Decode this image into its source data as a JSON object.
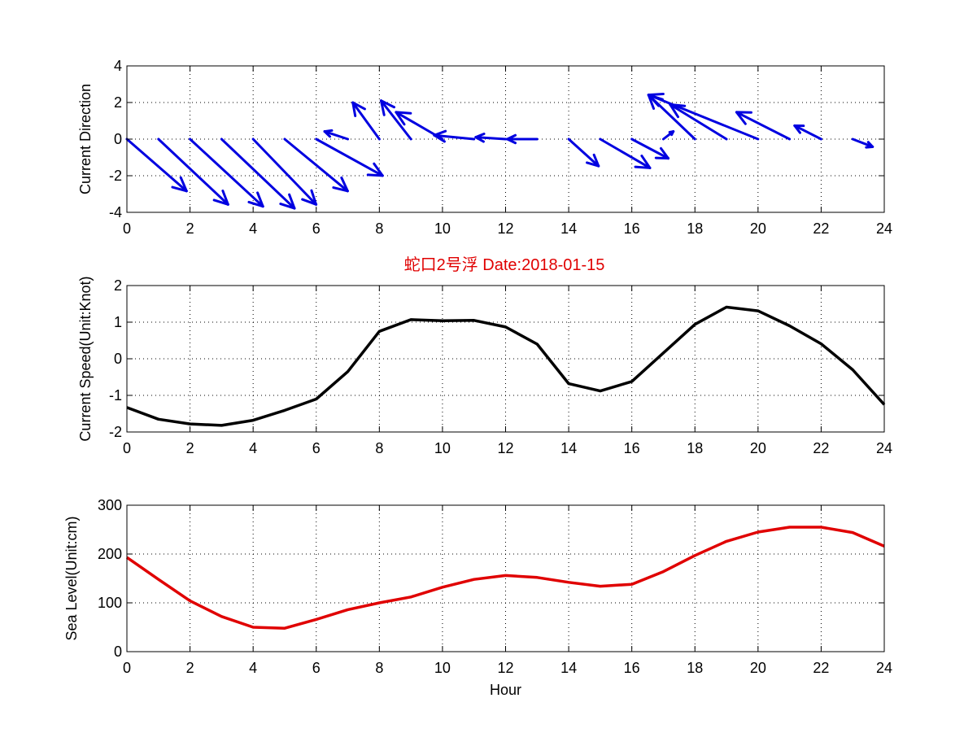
{
  "figure": {
    "title": "蛇口2号浮   Date:2018-01-15",
    "title_color": "#e00000",
    "xlabel": "Hour"
  },
  "chart_data": [
    {
      "type": "quiver",
      "ylabel": "Current Direction",
      "xlim": [
        0,
        24
      ],
      "ylim": [
        -4,
        4
      ],
      "xticks": [
        0,
        2,
        4,
        6,
        8,
        10,
        12,
        14,
        16,
        18,
        20,
        22,
        24
      ],
      "yticks": [
        -4,
        -2,
        0,
        2,
        4
      ],
      "grid": true,
      "color": "#0000e0",
      "vectors": [
        {
          "x": 0,
          "u": 1.8,
          "v": -2.7
        },
        {
          "x": 1,
          "u": 2.1,
          "v": -3.4
        },
        {
          "x": 2,
          "u": 2.2,
          "v": -3.5
        },
        {
          "x": 3,
          "u": 2.2,
          "v": -3.6
        },
        {
          "x": 4,
          "u": 1.9,
          "v": -3.4
        },
        {
          "x": 5,
          "u": 1.9,
          "v": -2.7
        },
        {
          "x": 6,
          "u": 2.0,
          "v": -1.9
        },
        {
          "x": 7,
          "u": -0.7,
          "v": 0.4
        },
        {
          "x": 8,
          "u": -0.8,
          "v": 1.9
        },
        {
          "x": 9,
          "u": -0.9,
          "v": 2.0
        },
        {
          "x": 10,
          "u": -1.4,
          "v": 1.4
        },
        {
          "x": 11,
          "u": -1.2,
          "v": 0.2
        },
        {
          "x": 12,
          "u": -0.9,
          "v": 0.1
        },
        {
          "x": 13,
          "u": -0.9,
          "v": 0.0
        },
        {
          "x": 14,
          "u": 0.9,
          "v": -1.4
        },
        {
          "x": 15,
          "u": 1.5,
          "v": -1.5
        },
        {
          "x": 16,
          "u": 1.1,
          "v": -1.0
        },
        {
          "x": 17,
          "u": 0.3,
          "v": 0.4
        },
        {
          "x": 18,
          "u": -1.4,
          "v": 2.3
        },
        {
          "x": 19,
          "u": -1.7,
          "v": 1.8
        },
        {
          "x": 20,
          "u": -3.3,
          "v": 2.3
        },
        {
          "x": 21,
          "u": -1.6,
          "v": 1.4
        },
        {
          "x": 22,
          "u": -0.8,
          "v": 0.7
        },
        {
          "x": 23,
          "u": 0.6,
          "v": -0.4
        }
      ]
    },
    {
      "type": "line",
      "ylabel": "Current Speed(Unit:Knot)",
      "xlim": [
        0,
        24
      ],
      "ylim": [
        -2,
        2
      ],
      "xticks": [
        0,
        2,
        4,
        6,
        8,
        10,
        12,
        14,
        16,
        18,
        20,
        22,
        24
      ],
      "yticks": [
        -2,
        -1,
        0,
        1,
        2
      ],
      "grid": true,
      "color": "#000000",
      "x": [
        0,
        1,
        2,
        3,
        4,
        5,
        6,
        7,
        8,
        9,
        10,
        11,
        12,
        13,
        14,
        15,
        16,
        17,
        18,
        19,
        20,
        21,
        22,
        23,
        24
      ],
      "y": [
        -1.33,
        -1.65,
        -1.78,
        -1.82,
        -1.68,
        -1.41,
        -1.1,
        -0.35,
        0.75,
        1.07,
        1.04,
        1.05,
        0.87,
        0.4,
        -0.68,
        -0.88,
        -0.62,
        0.16,
        0.94,
        1.41,
        1.31,
        0.9,
        0.41,
        -0.3,
        -1.25
      ]
    },
    {
      "type": "line",
      "ylabel": "Sea Level(Unit:cm)",
      "xlabel": "Hour",
      "xlim": [
        0,
        24
      ],
      "ylim": [
        0,
        300
      ],
      "xticks": [
        0,
        2,
        4,
        6,
        8,
        10,
        12,
        14,
        16,
        18,
        20,
        22,
        24
      ],
      "yticks": [
        0,
        100,
        200,
        300
      ],
      "grid": true,
      "color": "#e00000",
      "x": [
        0,
        1,
        2,
        3,
        4,
        5,
        6,
        7,
        8,
        9,
        10,
        11,
        12,
        13,
        14,
        15,
        16,
        17,
        18,
        19,
        20,
        21,
        22,
        23,
        24
      ],
      "y": [
        193,
        148,
        104,
        72,
        50,
        48,
        66,
        86,
        100,
        112,
        132,
        148,
        156,
        152,
        142,
        134,
        138,
        164,
        197,
        226,
        245,
        255,
        255,
        244,
        216
      ]
    }
  ]
}
